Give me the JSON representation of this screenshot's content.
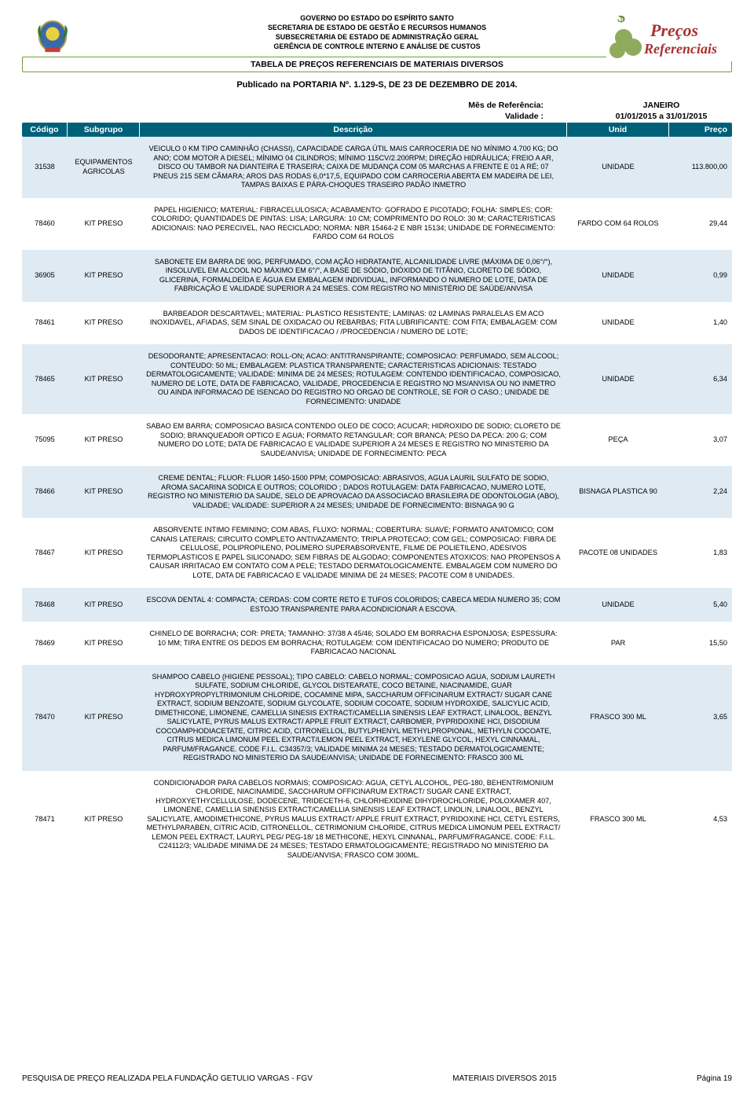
{
  "header": {
    "gov_line1": "GOVERNO DO ESTADO DO ESPÍRITO SANTO",
    "gov_line2": "SECRETARIA DE ESTADO DE GESTÃO E RECURSOS HUMANOS",
    "gov_line3": "SUBSECRETARIA DE ESTADO DE ADMINISTRAÇÃO GERAL",
    "gov_line4": "GERÊNCIA DE CONTROLE INTERNO E ANÁLISE DE CUSTOS",
    "title_bar": "TABELA DE PREÇOS REFERENCIAIS DE MATERIAIS DIVERSOS",
    "subtitle": "Publicado na PORTARIA Nº. 1.129-S, DE 23 DE DEZEMBRO DE 2014.",
    "logo_text1": "Preços",
    "logo_text2": "Referenciais"
  },
  "meta": {
    "mes_label": "Mês de Referência:",
    "mes_value": "JANEIRO",
    "validade_label": "Validade :",
    "validade_value": "01/01/2015 a 31/01/2015"
  },
  "columns": {
    "codigo": "Código",
    "subgrupo": "Subgrupo",
    "descricao": "Descrição",
    "unid": "Unid",
    "preco": "Preço"
  },
  "colors": {
    "header_bg": "#006078",
    "header_fg": "#ffffff",
    "row_alt_bg": "#dfeaf2",
    "rule_border": "#6fa034"
  },
  "rows": [
    {
      "codigo": "31538",
      "subgrupo": "EQUIPAMENTOS AGRICOLAS",
      "descricao": "VEICULO 0 KM TIPO CAMINHÃO (CHASSI), CAPACIDADE CARGA ÚTIL MAIS CARROCERIA DE NO MÍNIMO 4.700 KG; DO ANO; COM MOTOR A DIESEL; MÍNIMO 04 CILINDROS; MÍNIMO 115CV/2.200RPM; DIREÇÃO HIDRÁULICA; FREIO A AR, DISCO OU TAMBOR NA DIANTEIRA E TRASEIRA; CAIXA DE MUDANÇA COM 05 MARCHAS A FRENTE E 01 A RÉ; 07 PNEUS 215 SEM CÂMARA; AROS DAS RODAS 6,0*17,5, EQUIPADO COM CARROCERIA ABERTA EM MADEIRA DE LEI, TAMPAS BAIXAS E PÁRA-CHOQUES TRASEIRO PADÃO INMETRO",
      "unid": "UNIDADE",
      "preco": "113.800,00",
      "alt": true
    },
    {
      "codigo": "78460",
      "subgrupo": "KIT PRESO",
      "descricao": "PAPEL HIGIENICO; MATERIAL: FIBRACELULOSICA; ACABAMENTO: GOFRADO E PICOTADO; FOLHA: SIMPLES; COR: COLORIDO; QUANTIDADES DE PINTAS: LISA; LARGURA: 10 CM; COMPRIMENTO DO ROLO: 30 M; CARACTERISTICAS ADICIONAIS: NAO PERECIVEL, NAO RECICLADO; NORMA: NBR 15464-2 E NBR 15134; UNIDADE DE FORNECIMENTO: FARDO COM 64 ROLOS",
      "unid": "FARDO COM 64 ROLOS",
      "preco": "29,44",
      "alt": false
    },
    {
      "codigo": "36905",
      "subgrupo": "KIT PRESO",
      "descricao": "SABONETE EM BARRA DE 90G, PERFUMADO, COM AÇÃO HIDRATANTE, ALCANILIDADE LIVRE (MÁXIMA DE 0,06°/°), INSOLUVEL EM ALCOOL NO MÁXIMO EM 6°/°, A BASE DE SÓDIO, DIÓXIDO DE TITÂNIO, CLORETO DE SÓDIO, GLICERINA, FORMALDEÍDA E ÁGUA EM EMBALAGEM INDIVIDUAL, INFORMANDO O NUMERO DE LOTE, DATA DE FABRICAÇÃO E VALIDADE SUPERIOR A 24 MESES. COM REGISTRO NO MINISTÉRIO DE SAÚDE/ANVISA",
      "unid": "UNIDADE",
      "preco": "0,99",
      "alt": true
    },
    {
      "codigo": "78461",
      "subgrupo": "KIT PRESO",
      "descricao": "BARBEADOR DESCARTAVEL; MATERIAL: PLASTICO RESISTENTE; LAMINAS: 02 LAMINAS PARALELAS EM ACO INOXIDAVEL, AFIADAS, SEM SINAL DE OXIDACAO OU REBARBAS; FITA LUBRIFICANTE: COM FITA; EMBALAGEM: COM DADOS DE IDENTIFICACAO / /PROCEDENCIA / NUMERO DE LOTE;",
      "unid": "UNIDADE",
      "preco": "1,40",
      "alt": false
    },
    {
      "codigo": "78465",
      "subgrupo": "KIT PRESO",
      "descricao": "DESODORANTE; APRESENTACAO: ROLL-ON; ACAO: ANTITRANSPIRANTE; COMPOSICAO: PERFUMADO, SEM ALCOOL; CONTEUDO: 50 ML; EMBALAGEM: PLASTICA TRANSPARENTE; CARACTERISTICAS ADICIONAIS: TESTADO DERMATOLOGICAMENTE; VALIDADE: MINIMA DE 24 MESES; ROTULAGEM: CONTENDO IDENTIFICACAO, COMPOSICAO, NUMERO DE LOTE, DATA DE FABRICACAO, VALIDADE, PROCEDENCIA E REGISTRO NO MS/ANVISA OU NO INMETRO OU AINDA INFORMACAO DE ISENCAO DO REGISTRO NO ORGAO DE CONTROLE, SE FOR O CASO.; UNIDADE DE FORNECIMENTO: UNIDADE",
      "unid": "UNIDADE",
      "preco": "6,34",
      "alt": true
    },
    {
      "codigo": "75095",
      "subgrupo": "KIT PRESO",
      "descricao": "SABAO EM BARRA; COMPOSICAO BASICA CONTENDO OLEO DE COCO; ACUCAR; HIDROXIDO DE SODIO; CLORETO DE SODIO; BRANQUEADOR OPTICO E AGUA; FORMATO RETANGULAR; COR BRANCA; PESO DA PECA: 200 G; COM NUMERO DO LOTE; DATA DE FABRICACAO E VALIDADE SUPERIOR A 24 MESES E REGISTRO NO MINISTERIO DA SAUDE/ANVISA; UNIDADE DE FORNECIMENTO: PECA",
      "unid": "PEÇA",
      "preco": "3,07",
      "alt": false
    },
    {
      "codigo": "78466",
      "subgrupo": "KIT PRESO",
      "descricao": "CREME DENTAL; FLUOR: FLUOR 1450-1500 PPM; COMPOSICAO: ABRASIVOS, AGUA LAURIL SULFATO DE SODIO, AROMA SACARINA SODICA E OUTROS; COLORIDO ; DADOS ROTULAGEM: DATA FABRICACAO, NUMERO LOTE, REGISTRO NO MINISTERIO DA SAUDE, SELO DE APROVACAO DA ASSOCIACAO BRASILEIRA DE ODONTOLOGIA (ABO), VALIDADE; VALIDADE: SUPERIOR A 24 MESES; UNIDADE DE FORNECIMENTO: BISNAGA 90 G",
      "unid": "BISNAGA PLASTICA 90",
      "preco": "2,24",
      "alt": true
    },
    {
      "codigo": "78467",
      "subgrupo": "KIT PRESO",
      "descricao": "ABSORVENTE INTIMO FEMININO; COM ABAS, FLUXO: NORMAL; COBERTURA: SUAVE; FORMATO ANATOMICO; COM CANAIS LATERAIS; CIRCUITO COMPLETO ANTIVAZAMENTO; TRIPLA PROTECAO; COM GEL; COMPOSICAO: FIBRA DE CELULOSE, POLIPROPILENO, POLIMERO SUPERABSORVENTE, FILME DE POLIETILENO, ADESIVOS TERMOPLASTICOS E PAPEL SILICONADO; SEM FIBRAS DE ALGODAO; COMPONENTES ATOXICOS; NAO PROPENSOS A CAUSAR IRRITACAO EM CONTATO COM A PELE; TESTADO DERMATOLOGICAMENTE. EMBALAGEM COM NUMERO DO LOTE, DATA DE FABRICACAO E VALIDADE MINIMA DE 24 MESES; PACOTE COM 8 UNIDADES.",
      "unid": "PACOTE 08 UNIDADES",
      "preco": "1,83",
      "alt": false
    },
    {
      "codigo": "78468",
      "subgrupo": "KIT PRESO",
      "descricao": "ESCOVA DENTAL 4: COMPACTA; CERDAS: COM CORTE RETO E TUFOS COLORIDOS; CABECA MEDIA NUMERO 35; COM ESTOJO TRANSPARENTE PARA ACONDICIONAR A ESCOVA.",
      "unid": "UNIDADE",
      "preco": "5,40",
      "alt": true
    },
    {
      "codigo": "78469",
      "subgrupo": "KIT PRESO",
      "descricao": "CHINELO DE BORRACHA; COR: PRETA; TAMANHO: 37/38 A 45/46; SOLADO EM BORRACHA ESPONJOSA; ESPESSURA: 10 MM; TIRA ENTRE OS DEDOS EM BORRACHA; ROTULAGEM: COM IDENTIFICACAO DO NUMERO; PRODUTO DE FABRICACAO NACIONAL",
      "unid": "PAR",
      "preco": "15,50",
      "alt": false
    },
    {
      "codigo": "78470",
      "subgrupo": "KIT PRESO",
      "descricao": "SHAMPOO CABELO (HIGIENE PESSOAL); TIPO CABELO: CABELO NORMAL; COMPOSICAO AGUA, SODIUM LAURETH SULFATE, SODIUM CHLORIDE, GLYCOL DISTEARATE, COCO BETAINE, NIACINAMIDE, GUAR HYDROXYPROPYLTRIMONIUM CHLORIDE, COCAMINE MIPA, SACCHARUM OFFICINARUM EXTRACT/ SUGAR CANE EXTRACT, SODIUM BENZOATE, SODIUM GLYCOLATE, SODIUM COCOATE, SODIUM HYDROXIDE, SALICYLIC ACID, DIMETHICONE, LIMONENE, CAMELLIA SINESIS EXTRACT/CAMELLIA SINENSIS LEAF EXTRACT, LINALOOL, BENZYL SALICYLATE, PYRUS MALUS EXTRACT/ APPLE FRUIT EXTRACT, CARBOMER, PYPRIDOXINE HCI, DISODIUM COCOAMPHODIACETATE, CITRIC ACID, CITRONELLOL, BUTYLPHENYL METHYLPROPIONAL, METHYLN COCOATE, CITRUS MEDICA LIMONUM PEEL EXTRACT/LEMON PEEL EXTRACT, HEXYLENE GLYCOL, HEXYL CINNAMAL, PARFUM/FRAGANCE. CODE F.I.L. C34357/3; VALIDADE MINIMA 24 MESES; TESTADO DERMATOLOGICAMENTE; REGISTRADO NO MINISTERIO DA SAUDE/ANVISA; UNIDADE DE FORNECIMENTO: FRASCO 300 ML",
      "unid": "FRASCO 300 ML",
      "preco": "3,65",
      "alt": true
    },
    {
      "codigo": "78471",
      "subgrupo": "KIT PRESO",
      "descricao": "CONDICIONADOR PARA CABELOS NORMAIS; COMPOSICAO: AGUA, CETYL ALCOHOL, PEG-180, BEHENTRIMONIUM CHLORIDE, NIACINAMIDE, SACCHARUM OFFICINARUM EXTRACT/ SUGAR CANE EXTRACT, HYDROXYETHYCELLULOSE, DODECENE, TRIDECETH-6, CHLORHEXIDINE DIHYDROCHLORIDE, POLOXAMER 407, LIMONENE, CAMELLIA SINENSIS EXTRACT/CAMELLIA SINENSIS LEAF EXTRACT, LINOLIN, LINALOOL, BENZYL SALICYLATE, AMODIMETHICONE, PYRUS MALUS EXTRACT/ APPLE FRUIT EXTRACT, PYRIDOXINE HCI, CETYL ESTERS, METHYLPARABEN, CITRIC ACID, CITRONELLOL, CETRIMONIUM CHLORIDE, CITRUS MEDICA LIMONUM PEEL EXTRACT/ LEMON PEEL EXTRACT, LAURYL PEG/ PEG-18/ 18 METHICONE, HEXYL CINNANAL, PARFUM/FRAGANCE. CODE: F.I.L. C24112/3; VALIDADE MINIMA DE 24 MESES; TESTADO ERMATOLOGICAMENTE; REGISTRADO NO MINISTERIO DA SAUDE/ANVISA; FRASCO COM 300ML.",
      "unid": "FRASCO 300 ML",
      "preco": "4,53",
      "alt": false
    }
  ],
  "footer": {
    "left": "PESQUISA DE PREÇO REALIZADA PELA FUNDAÇÃO GETULIO VARGAS - FGV",
    "mid": "MATERIAIS DIVERSOS 2015",
    "right": "Página 19"
  }
}
